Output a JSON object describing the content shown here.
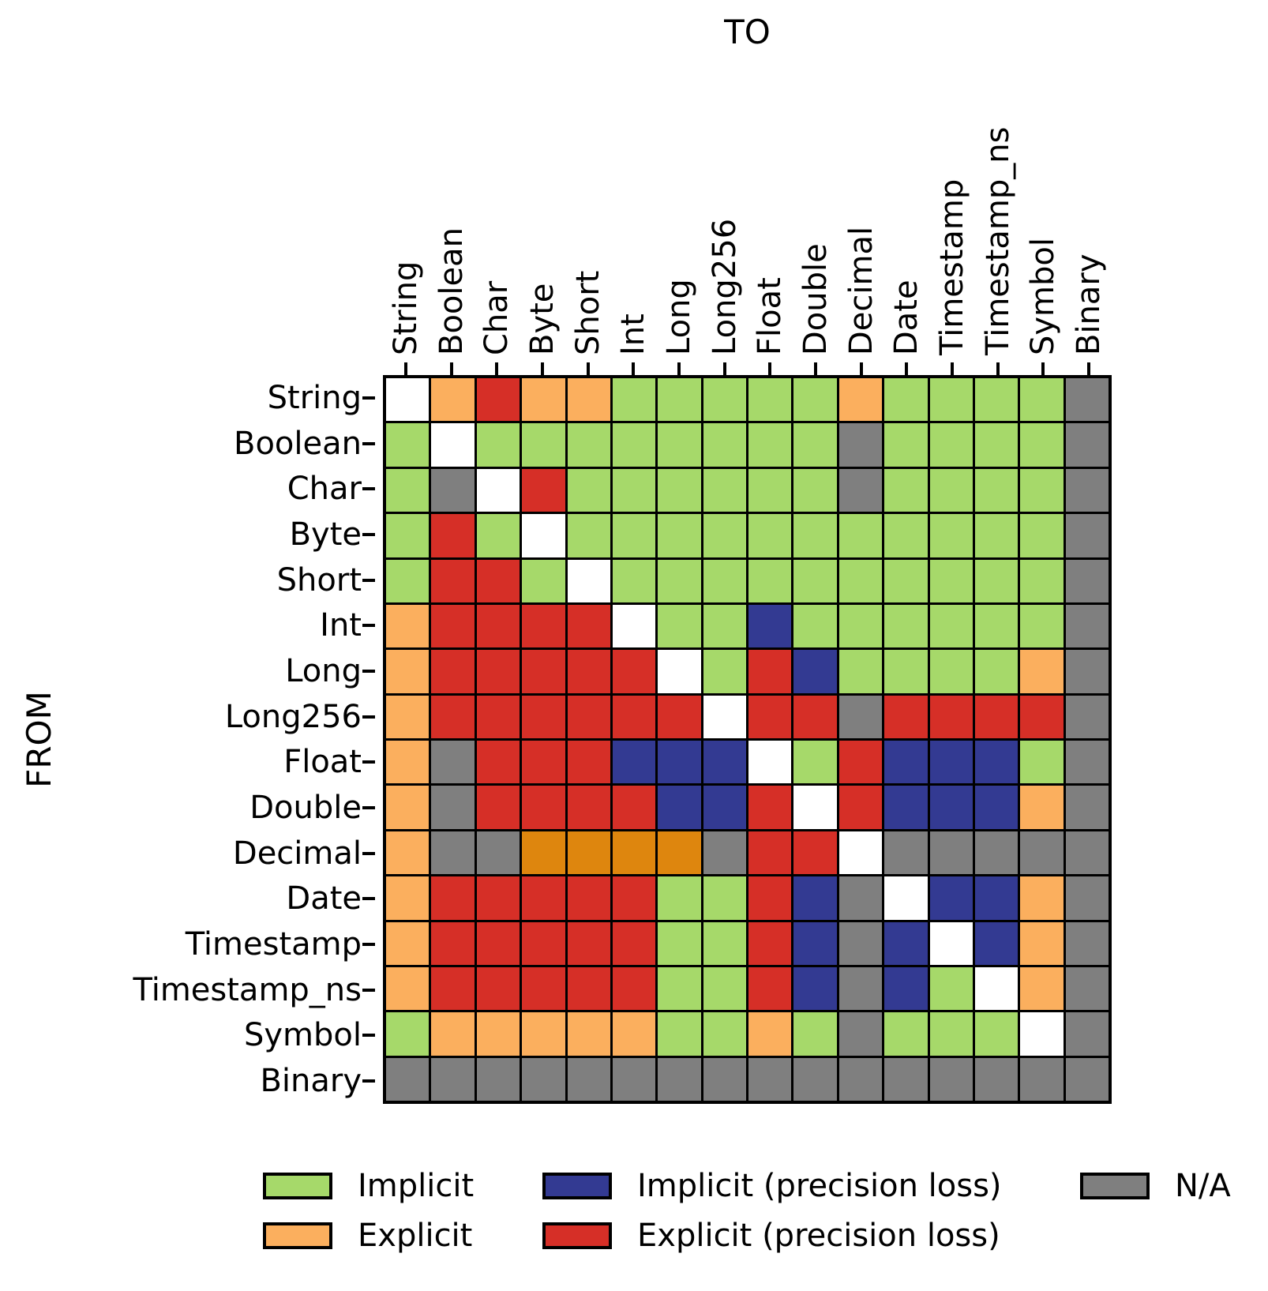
{
  "chart_data": {
    "type": "heatmap",
    "title_top": "TO",
    "ylabel": "FROM",
    "x_axis_title": "TO",
    "y_axis_title": "FROM",
    "categories": [
      "String",
      "Boolean",
      "Char",
      "Byte",
      "Short",
      "Int",
      "Long",
      "Long256",
      "Float",
      "Double",
      "Decimal",
      "Date",
      "Timestamp",
      "Timestamp_ns",
      "Symbol",
      "Binary"
    ],
    "code_legend": {
      "G": "Implicit",
      "O": "Explicit",
      "B": "Implicit (precision loss)",
      "R": "Explicit (precision loss)",
      "N": "N/A",
      "W": "none (same type, diagonal)",
      "D": "unlabeled dark-orange (Decimal row)"
    },
    "palette": {
      "G": "#a6d96a",
      "O": "#fbaf5e",
      "B": "#333a92",
      "R": "#d62f27",
      "N": "#7f7f7f",
      "W": "#ffffff",
      "D": "#de860e"
    },
    "grid_line_color": "#000000",
    "matrix_rows_from_top": [
      "WOROOGGGGGOGGGGN",
      "GWGGGGGGGGNGGGGN",
      "GNWRGGGGGGNGGGGN",
      "GRGWGGGGGGGGGGGN",
      "GRRGWGGGGGGGGGGN",
      "ORRRRWGGBGGGGGGN",
      "ORRRRRWGRBGGGGON",
      "ORRRRRRWRRNRRRRN",
      "ONRRRBBBWGRBBBGN",
      "ONRRRRBBRWRBBBON",
      "ONNDDDDNRRWNNNNN",
      "ORRRRRGGRBNWBBON",
      "ORRRRRGGRBNBWBON",
      "ORRRRRGGRBNBGWON",
      "GOOOOOGGOGNGGGWN",
      "NNNNNNNNNNNNNNNN"
    ],
    "legend": [
      {
        "label": "Implicit",
        "code": "G"
      },
      {
        "label": "Implicit (precision loss)",
        "code": "B"
      },
      {
        "label": "N/A",
        "code": "N"
      },
      {
        "label": "Explicit",
        "code": "O"
      },
      {
        "label": "Explicit (precision loss)",
        "code": "R"
      }
    ],
    "legend_position": "bottom",
    "grid_on": true
  }
}
